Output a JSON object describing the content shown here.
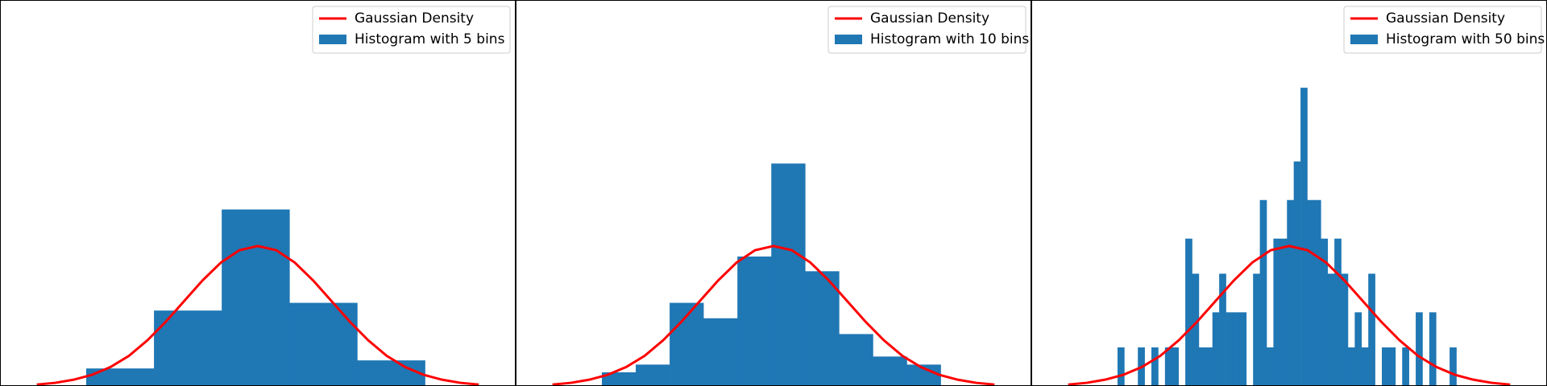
{
  "chart_data": [
    {
      "type": "histogram",
      "name": "Histogram with 5 bins",
      "color": "#1f77b4",
      "bins": [
        -2.33,
        -1.41,
        -0.49,
        0.43,
        1.35,
        2.27
      ],
      "values": [
        0.05,
        0.215,
        0.503,
        0.237,
        0.073
      ],
      "series": [
        {
          "name": "Gaussian Density",
          "color": "#ff0000",
          "x": [
            -3,
            -2.75,
            -2.5,
            -2.25,
            -2,
            -1.75,
            -1.5,
            -1.25,
            -1,
            -0.75,
            -0.5,
            -0.25,
            0,
            0.25,
            0.5,
            0.75,
            1,
            1.25,
            1.5,
            1.75,
            2,
            2.25,
            2.5,
            2.75,
            3
          ],
          "values": [
            0.004,
            0.009,
            0.018,
            0.032,
            0.054,
            0.086,
            0.13,
            0.183,
            0.242,
            0.301,
            0.352,
            0.387,
            0.399,
            0.387,
            0.352,
            0.301,
            0.242,
            0.183,
            0.13,
            0.086,
            0.054,
            0.032,
            0.018,
            0.009,
            0.004
          ]
        }
      ],
      "xlim": [
        -3.5,
        3.5
      ],
      "ylim": [
        0,
        1.1
      ],
      "legend": "upper right"
    },
    {
      "type": "histogram",
      "name": "Histogram with 10 bins",
      "color": "#1f77b4",
      "bins": [
        -2.33,
        -1.87,
        -1.41,
        -0.95,
        -0.49,
        -0.03,
        0.43,
        0.89,
        1.35,
        1.81,
        2.27
      ],
      "values": [
        0.039,
        0.061,
        0.237,
        0.193,
        0.369,
        0.634,
        0.327,
        0.148,
        0.084,
        0.061
      ],
      "series": [
        {
          "name": "Gaussian Density",
          "color": "#ff0000",
          "x": [
            -3,
            -2.75,
            -2.5,
            -2.25,
            -2,
            -1.75,
            -1.5,
            -1.25,
            -1,
            -0.75,
            -0.5,
            -0.25,
            0,
            0.25,
            0.5,
            0.75,
            1,
            1.25,
            1.5,
            1.75,
            2,
            2.25,
            2.5,
            2.75,
            3
          ],
          "values": [
            0.004,
            0.009,
            0.018,
            0.032,
            0.054,
            0.086,
            0.13,
            0.183,
            0.242,
            0.301,
            0.352,
            0.387,
            0.399,
            0.387,
            0.352,
            0.301,
            0.242,
            0.183,
            0.13,
            0.086,
            0.054,
            0.032,
            0.018,
            0.009,
            0.004
          ]
        }
      ],
      "xlim": [
        -3.5,
        3.5
      ],
      "ylim": [
        0,
        1.1
      ],
      "legend": "upper right"
    },
    {
      "type": "histogram",
      "name": "Histogram with 50 bins",
      "color": "#1f77b4",
      "bins": [
        -2.33,
        -2.238,
        -2.146,
        -2.054,
        -1.962,
        -1.87,
        -1.778,
        -1.686,
        -1.594,
        -1.502,
        -1.41,
        -1.318,
        -1.226,
        -1.134,
        -1.042,
        -0.95,
        -0.858,
        -0.766,
        -0.674,
        -0.582,
        -0.49,
        -0.398,
        -0.306,
        -0.214,
        -0.122,
        -0.03,
        0.062,
        0.154,
        0.246,
        0.338,
        0.43,
        0.522,
        0.614,
        0.706,
        0.798,
        0.89,
        0.982,
        1.074,
        1.166,
        1.258,
        1.35,
        1.442,
        1.534,
        1.626,
        1.718,
        1.81,
        1.902,
        1.994,
        2.086,
        2.178,
        2.27
      ],
      "values": [
        0.11,
        0,
        0,
        0.11,
        0,
        0.11,
        0,
        0.11,
        0.11,
        0,
        0.42,
        0.32,
        0.11,
        0.11,
        0.21,
        0.32,
        0.21,
        0.21,
        0.21,
        0,
        0.32,
        0.53,
        0.11,
        0.42,
        0.42,
        0.53,
        0.64,
        0.85,
        0.53,
        0.53,
        0.42,
        0.32,
        0.42,
        0.32,
        0.11,
        0.21,
        0.11,
        0.32,
        0,
        0.11,
        0.11,
        0,
        0.11,
        0,
        0.21,
        0,
        0.21,
        0,
        0,
        0.11
      ],
      "series": [
        {
          "name": "Gaussian Density",
          "color": "#ff0000",
          "x": [
            -3,
            -2.75,
            -2.5,
            -2.25,
            -2,
            -1.75,
            -1.5,
            -1.25,
            -1,
            -0.75,
            -0.5,
            -0.25,
            0,
            0.25,
            0.5,
            0.75,
            1,
            1.25,
            1.5,
            1.75,
            2,
            2.25,
            2.5,
            2.75,
            3
          ],
          "values": [
            0.004,
            0.009,
            0.018,
            0.032,
            0.054,
            0.086,
            0.13,
            0.183,
            0.242,
            0.301,
            0.352,
            0.387,
            0.399,
            0.387,
            0.352,
            0.301,
            0.242,
            0.183,
            0.13,
            0.086,
            0.054,
            0.032,
            0.018,
            0.009,
            0.004
          ]
        }
      ],
      "xlim": [
        -3.5,
        3.5
      ],
      "ylim": [
        0,
        1.1
      ],
      "legend": "upper right"
    }
  ]
}
